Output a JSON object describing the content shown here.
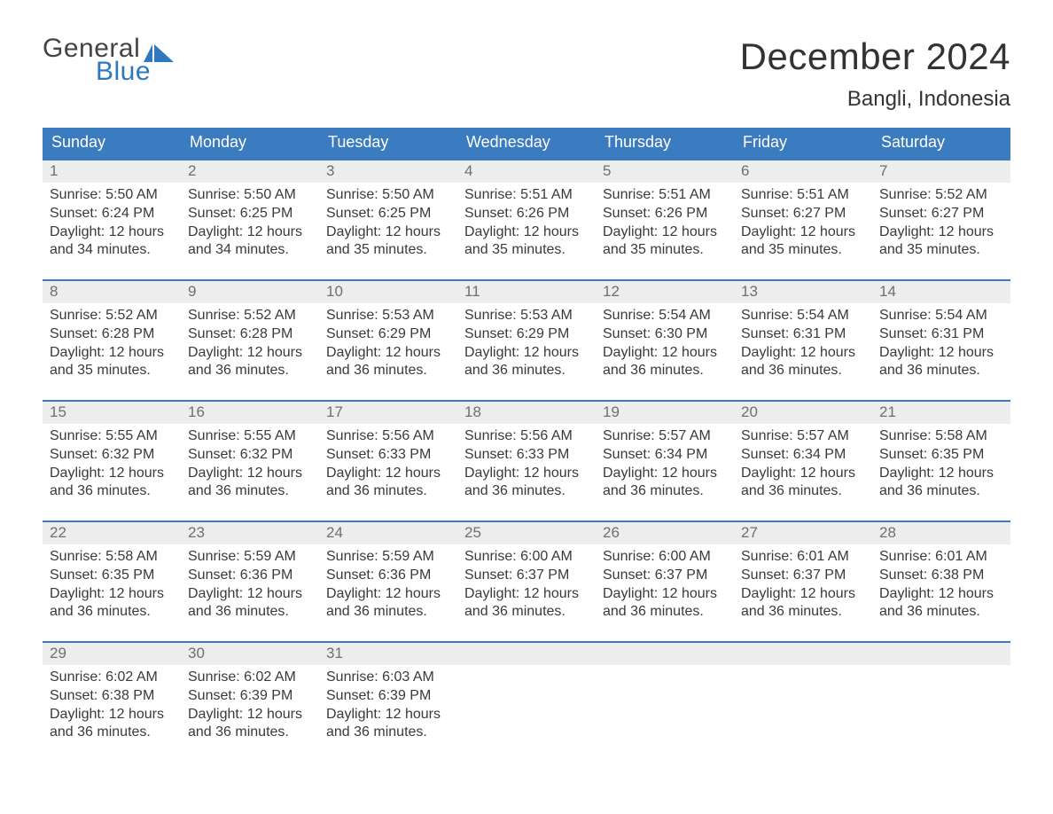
{
  "logo": {
    "text1": "General",
    "text2": "Blue",
    "text_color": "#444444",
    "accent_color": "#2f78bf"
  },
  "title": "December 2024",
  "location": "Bangli, Indonesia",
  "colors": {
    "header_bg": "#3b7bbf",
    "header_text": "#ffffff",
    "week_border": "#3b7bbf",
    "daynum_bg": "#ededed",
    "daynum_text": "#6f6f6f",
    "body_text": "#3a3a3a",
    "page_bg": "#ffffff"
  },
  "typography": {
    "title_fontsize": 42,
    "location_fontsize": 24,
    "header_fontsize": 18,
    "daynum_fontsize": 17,
    "body_fontsize": 16
  },
  "days_of_week": [
    "Sunday",
    "Monday",
    "Tuesday",
    "Wednesday",
    "Thursday",
    "Friday",
    "Saturday"
  ],
  "labels": {
    "sunrise": "Sunrise:",
    "sunset": "Sunset:",
    "daylight": "Daylight:"
  },
  "calendar": {
    "type": "table",
    "columns": 7,
    "weeks": [
      [
        {
          "n": "1",
          "sunrise": "5:50 AM",
          "sunset": "6:24 PM",
          "day_h": 12,
          "day_m": 34
        },
        {
          "n": "2",
          "sunrise": "5:50 AM",
          "sunset": "6:25 PM",
          "day_h": 12,
          "day_m": 34
        },
        {
          "n": "3",
          "sunrise": "5:50 AM",
          "sunset": "6:25 PM",
          "day_h": 12,
          "day_m": 35
        },
        {
          "n": "4",
          "sunrise": "5:51 AM",
          "sunset": "6:26 PM",
          "day_h": 12,
          "day_m": 35
        },
        {
          "n": "5",
          "sunrise": "5:51 AM",
          "sunset": "6:26 PM",
          "day_h": 12,
          "day_m": 35
        },
        {
          "n": "6",
          "sunrise": "5:51 AM",
          "sunset": "6:27 PM",
          "day_h": 12,
          "day_m": 35
        },
        {
          "n": "7",
          "sunrise": "5:52 AM",
          "sunset": "6:27 PM",
          "day_h": 12,
          "day_m": 35
        }
      ],
      [
        {
          "n": "8",
          "sunrise": "5:52 AM",
          "sunset": "6:28 PM",
          "day_h": 12,
          "day_m": 35
        },
        {
          "n": "9",
          "sunrise": "5:52 AM",
          "sunset": "6:28 PM",
          "day_h": 12,
          "day_m": 36
        },
        {
          "n": "10",
          "sunrise": "5:53 AM",
          "sunset": "6:29 PM",
          "day_h": 12,
          "day_m": 36
        },
        {
          "n": "11",
          "sunrise": "5:53 AM",
          "sunset": "6:29 PM",
          "day_h": 12,
          "day_m": 36
        },
        {
          "n": "12",
          "sunrise": "5:54 AM",
          "sunset": "6:30 PM",
          "day_h": 12,
          "day_m": 36
        },
        {
          "n": "13",
          "sunrise": "5:54 AM",
          "sunset": "6:31 PM",
          "day_h": 12,
          "day_m": 36
        },
        {
          "n": "14",
          "sunrise": "5:54 AM",
          "sunset": "6:31 PM",
          "day_h": 12,
          "day_m": 36
        }
      ],
      [
        {
          "n": "15",
          "sunrise": "5:55 AM",
          "sunset": "6:32 PM",
          "day_h": 12,
          "day_m": 36
        },
        {
          "n": "16",
          "sunrise": "5:55 AM",
          "sunset": "6:32 PM",
          "day_h": 12,
          "day_m": 36
        },
        {
          "n": "17",
          "sunrise": "5:56 AM",
          "sunset": "6:33 PM",
          "day_h": 12,
          "day_m": 36
        },
        {
          "n": "18",
          "sunrise": "5:56 AM",
          "sunset": "6:33 PM",
          "day_h": 12,
          "day_m": 36
        },
        {
          "n": "19",
          "sunrise": "5:57 AM",
          "sunset": "6:34 PM",
          "day_h": 12,
          "day_m": 36
        },
        {
          "n": "20",
          "sunrise": "5:57 AM",
          "sunset": "6:34 PM",
          "day_h": 12,
          "day_m": 36
        },
        {
          "n": "21",
          "sunrise": "5:58 AM",
          "sunset": "6:35 PM",
          "day_h": 12,
          "day_m": 36
        }
      ],
      [
        {
          "n": "22",
          "sunrise": "5:58 AM",
          "sunset": "6:35 PM",
          "day_h": 12,
          "day_m": 36
        },
        {
          "n": "23",
          "sunrise": "5:59 AM",
          "sunset": "6:36 PM",
          "day_h": 12,
          "day_m": 36
        },
        {
          "n": "24",
          "sunrise": "5:59 AM",
          "sunset": "6:36 PM",
          "day_h": 12,
          "day_m": 36
        },
        {
          "n": "25",
          "sunrise": "6:00 AM",
          "sunset": "6:37 PM",
          "day_h": 12,
          "day_m": 36
        },
        {
          "n": "26",
          "sunrise": "6:00 AM",
          "sunset": "6:37 PM",
          "day_h": 12,
          "day_m": 36
        },
        {
          "n": "27",
          "sunrise": "6:01 AM",
          "sunset": "6:37 PM",
          "day_h": 12,
          "day_m": 36
        },
        {
          "n": "28",
          "sunrise": "6:01 AM",
          "sunset": "6:38 PM",
          "day_h": 12,
          "day_m": 36
        }
      ],
      [
        {
          "n": "29",
          "sunrise": "6:02 AM",
          "sunset": "6:38 PM",
          "day_h": 12,
          "day_m": 36
        },
        {
          "n": "30",
          "sunrise": "6:02 AM",
          "sunset": "6:39 PM",
          "day_h": 12,
          "day_m": 36
        },
        {
          "n": "31",
          "sunrise": "6:03 AM",
          "sunset": "6:39 PM",
          "day_h": 12,
          "day_m": 36
        },
        {
          "empty": true
        },
        {
          "empty": true
        },
        {
          "empty": true
        },
        {
          "empty": true
        }
      ]
    ]
  }
}
